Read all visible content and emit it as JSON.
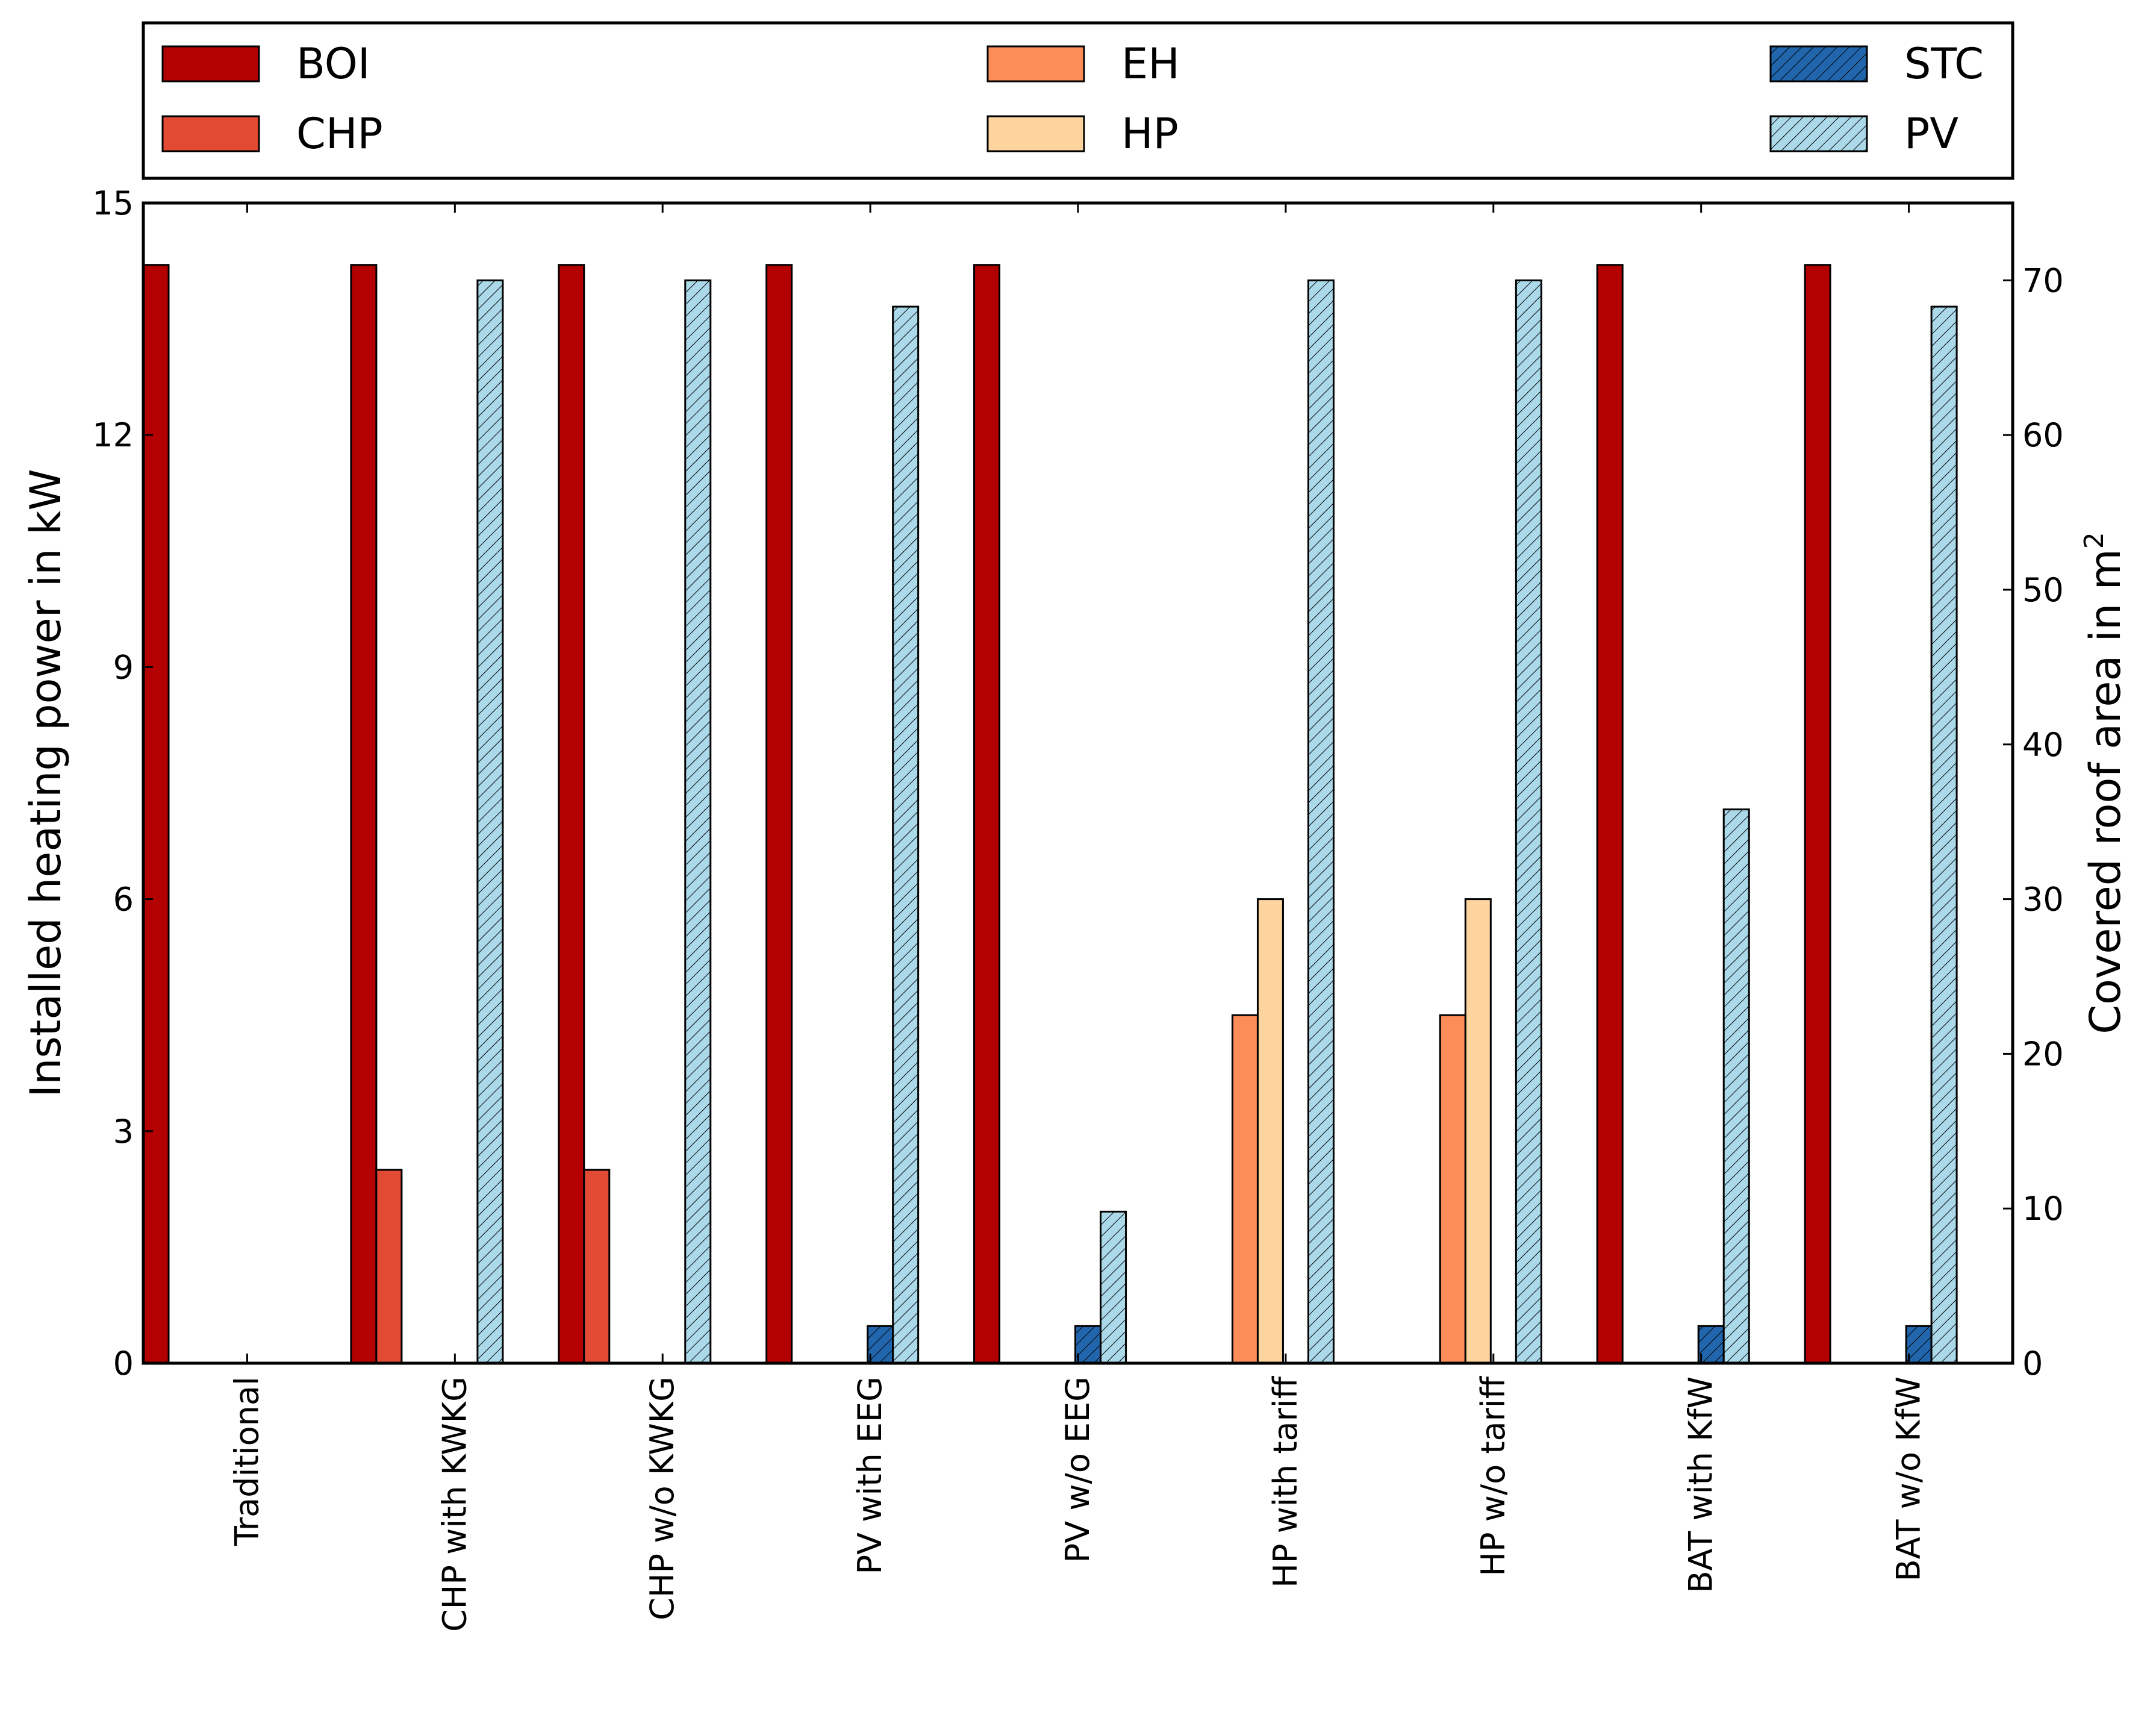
{
  "chart_data": {
    "type": "bar",
    "categories": [
      "Traditional",
      "CHP with KWKG",
      "CHP w/o KWKG",
      "PV with EEG",
      "PV w/o EEG",
      "HP with tariff",
      "HP w/o tariff",
      "BAT with KfW",
      "BAT w/o KfW"
    ],
    "ylabel": "Installed heating power in kW",
    "ylabel2": "Covered roof area in m",
    "ylabel2_superscript": "2",
    "ylim": [
      0,
      15
    ],
    "y2lim": [
      0,
      75
    ],
    "yticks": [
      "0",
      "3",
      "6",
      "9",
      "12",
      "15"
    ],
    "y2ticks": [
      "0",
      "10",
      "20",
      "30",
      "40",
      "50",
      "60",
      "70"
    ],
    "legend_position": "top, above plot",
    "series": [
      {
        "name": "BOI",
        "axis": "left",
        "color": "#b30000",
        "hatch": false,
        "values": [
          14.2,
          14.2,
          14.2,
          14.2,
          14.2,
          0,
          0,
          14.2,
          14.2
        ]
      },
      {
        "name": "CHP",
        "axis": "left",
        "color": "#e34a33",
        "hatch": false,
        "values": [
          0,
          2.5,
          2.5,
          0,
          0,
          0,
          0,
          0,
          0
        ]
      },
      {
        "name": "EH",
        "axis": "left",
        "color": "#fc8d59",
        "hatch": false,
        "values": [
          0,
          0,
          0,
          0,
          0,
          4.5,
          4.5,
          0,
          0
        ]
      },
      {
        "name": "HP",
        "axis": "left",
        "color": "#fdd49e",
        "hatch": false,
        "values": [
          0,
          0,
          0,
          0,
          0,
          6,
          6,
          0,
          0
        ]
      },
      {
        "name": "STC",
        "axis": "right",
        "color": "#2166ac",
        "hatch": true,
        "values": [
          0,
          0,
          0,
          2.4,
          2.4,
          0,
          0,
          2.4,
          2.4
        ]
      },
      {
        "name": "PV",
        "axis": "right",
        "color": "#abd9e9",
        "hatch": true,
        "values": [
          0,
          70,
          70,
          68.3,
          9.8,
          70,
          70,
          35.8,
          68.3
        ]
      }
    ]
  }
}
